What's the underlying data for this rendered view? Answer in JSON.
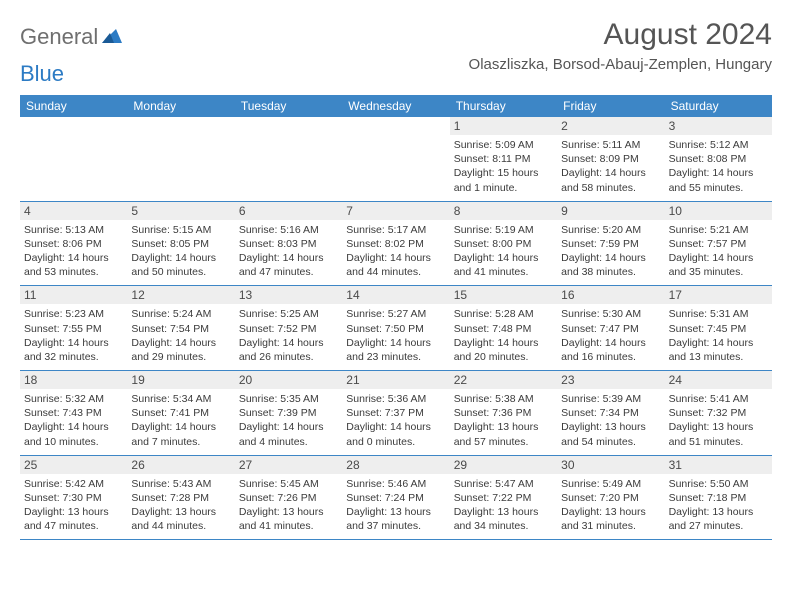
{
  "logo": {
    "general": "General",
    "blue": "Blue"
  },
  "title": "August 2024",
  "location": "Olaszliszka, Borsod-Abauj-Zemplen, Hungary",
  "weekdays": [
    "Sunday",
    "Monday",
    "Tuesday",
    "Wednesday",
    "Thursday",
    "Friday",
    "Saturday"
  ],
  "colors": {
    "header_bar": "#3d86c6",
    "day_number_bg": "#eeeeee",
    "text": "#3b3b3b",
    "title_text": "#555555",
    "logo_gray": "#6f6f6f",
    "logo_blue": "#2c7bc4"
  },
  "weeks": [
    [
      null,
      null,
      null,
      null,
      {
        "n": "1",
        "sr": "Sunrise: 5:09 AM",
        "ss": "Sunset: 8:11 PM",
        "dl": "Daylight: 15 hours and 1 minute."
      },
      {
        "n": "2",
        "sr": "Sunrise: 5:11 AM",
        "ss": "Sunset: 8:09 PM",
        "dl": "Daylight: 14 hours and 58 minutes."
      },
      {
        "n": "3",
        "sr": "Sunrise: 5:12 AM",
        "ss": "Sunset: 8:08 PM",
        "dl": "Daylight: 14 hours and 55 minutes."
      }
    ],
    [
      {
        "n": "4",
        "sr": "Sunrise: 5:13 AM",
        "ss": "Sunset: 8:06 PM",
        "dl": "Daylight: 14 hours and 53 minutes."
      },
      {
        "n": "5",
        "sr": "Sunrise: 5:15 AM",
        "ss": "Sunset: 8:05 PM",
        "dl": "Daylight: 14 hours and 50 minutes."
      },
      {
        "n": "6",
        "sr": "Sunrise: 5:16 AM",
        "ss": "Sunset: 8:03 PM",
        "dl": "Daylight: 14 hours and 47 minutes."
      },
      {
        "n": "7",
        "sr": "Sunrise: 5:17 AM",
        "ss": "Sunset: 8:02 PM",
        "dl": "Daylight: 14 hours and 44 minutes."
      },
      {
        "n": "8",
        "sr": "Sunrise: 5:19 AM",
        "ss": "Sunset: 8:00 PM",
        "dl": "Daylight: 14 hours and 41 minutes."
      },
      {
        "n": "9",
        "sr": "Sunrise: 5:20 AM",
        "ss": "Sunset: 7:59 PM",
        "dl": "Daylight: 14 hours and 38 minutes."
      },
      {
        "n": "10",
        "sr": "Sunrise: 5:21 AM",
        "ss": "Sunset: 7:57 PM",
        "dl": "Daylight: 14 hours and 35 minutes."
      }
    ],
    [
      {
        "n": "11",
        "sr": "Sunrise: 5:23 AM",
        "ss": "Sunset: 7:55 PM",
        "dl": "Daylight: 14 hours and 32 minutes."
      },
      {
        "n": "12",
        "sr": "Sunrise: 5:24 AM",
        "ss": "Sunset: 7:54 PM",
        "dl": "Daylight: 14 hours and 29 minutes."
      },
      {
        "n": "13",
        "sr": "Sunrise: 5:25 AM",
        "ss": "Sunset: 7:52 PM",
        "dl": "Daylight: 14 hours and 26 minutes."
      },
      {
        "n": "14",
        "sr": "Sunrise: 5:27 AM",
        "ss": "Sunset: 7:50 PM",
        "dl": "Daylight: 14 hours and 23 minutes."
      },
      {
        "n": "15",
        "sr": "Sunrise: 5:28 AM",
        "ss": "Sunset: 7:48 PM",
        "dl": "Daylight: 14 hours and 20 minutes."
      },
      {
        "n": "16",
        "sr": "Sunrise: 5:30 AM",
        "ss": "Sunset: 7:47 PM",
        "dl": "Daylight: 14 hours and 16 minutes."
      },
      {
        "n": "17",
        "sr": "Sunrise: 5:31 AM",
        "ss": "Sunset: 7:45 PM",
        "dl": "Daylight: 14 hours and 13 minutes."
      }
    ],
    [
      {
        "n": "18",
        "sr": "Sunrise: 5:32 AM",
        "ss": "Sunset: 7:43 PM",
        "dl": "Daylight: 14 hours and 10 minutes."
      },
      {
        "n": "19",
        "sr": "Sunrise: 5:34 AM",
        "ss": "Sunset: 7:41 PM",
        "dl": "Daylight: 14 hours and 7 minutes."
      },
      {
        "n": "20",
        "sr": "Sunrise: 5:35 AM",
        "ss": "Sunset: 7:39 PM",
        "dl": "Daylight: 14 hours and 4 minutes."
      },
      {
        "n": "21",
        "sr": "Sunrise: 5:36 AM",
        "ss": "Sunset: 7:37 PM",
        "dl": "Daylight: 14 hours and 0 minutes."
      },
      {
        "n": "22",
        "sr": "Sunrise: 5:38 AM",
        "ss": "Sunset: 7:36 PM",
        "dl": "Daylight: 13 hours and 57 minutes."
      },
      {
        "n": "23",
        "sr": "Sunrise: 5:39 AM",
        "ss": "Sunset: 7:34 PM",
        "dl": "Daylight: 13 hours and 54 minutes."
      },
      {
        "n": "24",
        "sr": "Sunrise: 5:41 AM",
        "ss": "Sunset: 7:32 PM",
        "dl": "Daylight: 13 hours and 51 minutes."
      }
    ],
    [
      {
        "n": "25",
        "sr": "Sunrise: 5:42 AM",
        "ss": "Sunset: 7:30 PM",
        "dl": "Daylight: 13 hours and 47 minutes."
      },
      {
        "n": "26",
        "sr": "Sunrise: 5:43 AM",
        "ss": "Sunset: 7:28 PM",
        "dl": "Daylight: 13 hours and 44 minutes."
      },
      {
        "n": "27",
        "sr": "Sunrise: 5:45 AM",
        "ss": "Sunset: 7:26 PM",
        "dl": "Daylight: 13 hours and 41 minutes."
      },
      {
        "n": "28",
        "sr": "Sunrise: 5:46 AM",
        "ss": "Sunset: 7:24 PM",
        "dl": "Daylight: 13 hours and 37 minutes."
      },
      {
        "n": "29",
        "sr": "Sunrise: 5:47 AM",
        "ss": "Sunset: 7:22 PM",
        "dl": "Daylight: 13 hours and 34 minutes."
      },
      {
        "n": "30",
        "sr": "Sunrise: 5:49 AM",
        "ss": "Sunset: 7:20 PM",
        "dl": "Daylight: 13 hours and 31 minutes."
      },
      {
        "n": "31",
        "sr": "Sunrise: 5:50 AM",
        "ss": "Sunset: 7:18 PM",
        "dl": "Daylight: 13 hours and 27 minutes."
      }
    ]
  ]
}
